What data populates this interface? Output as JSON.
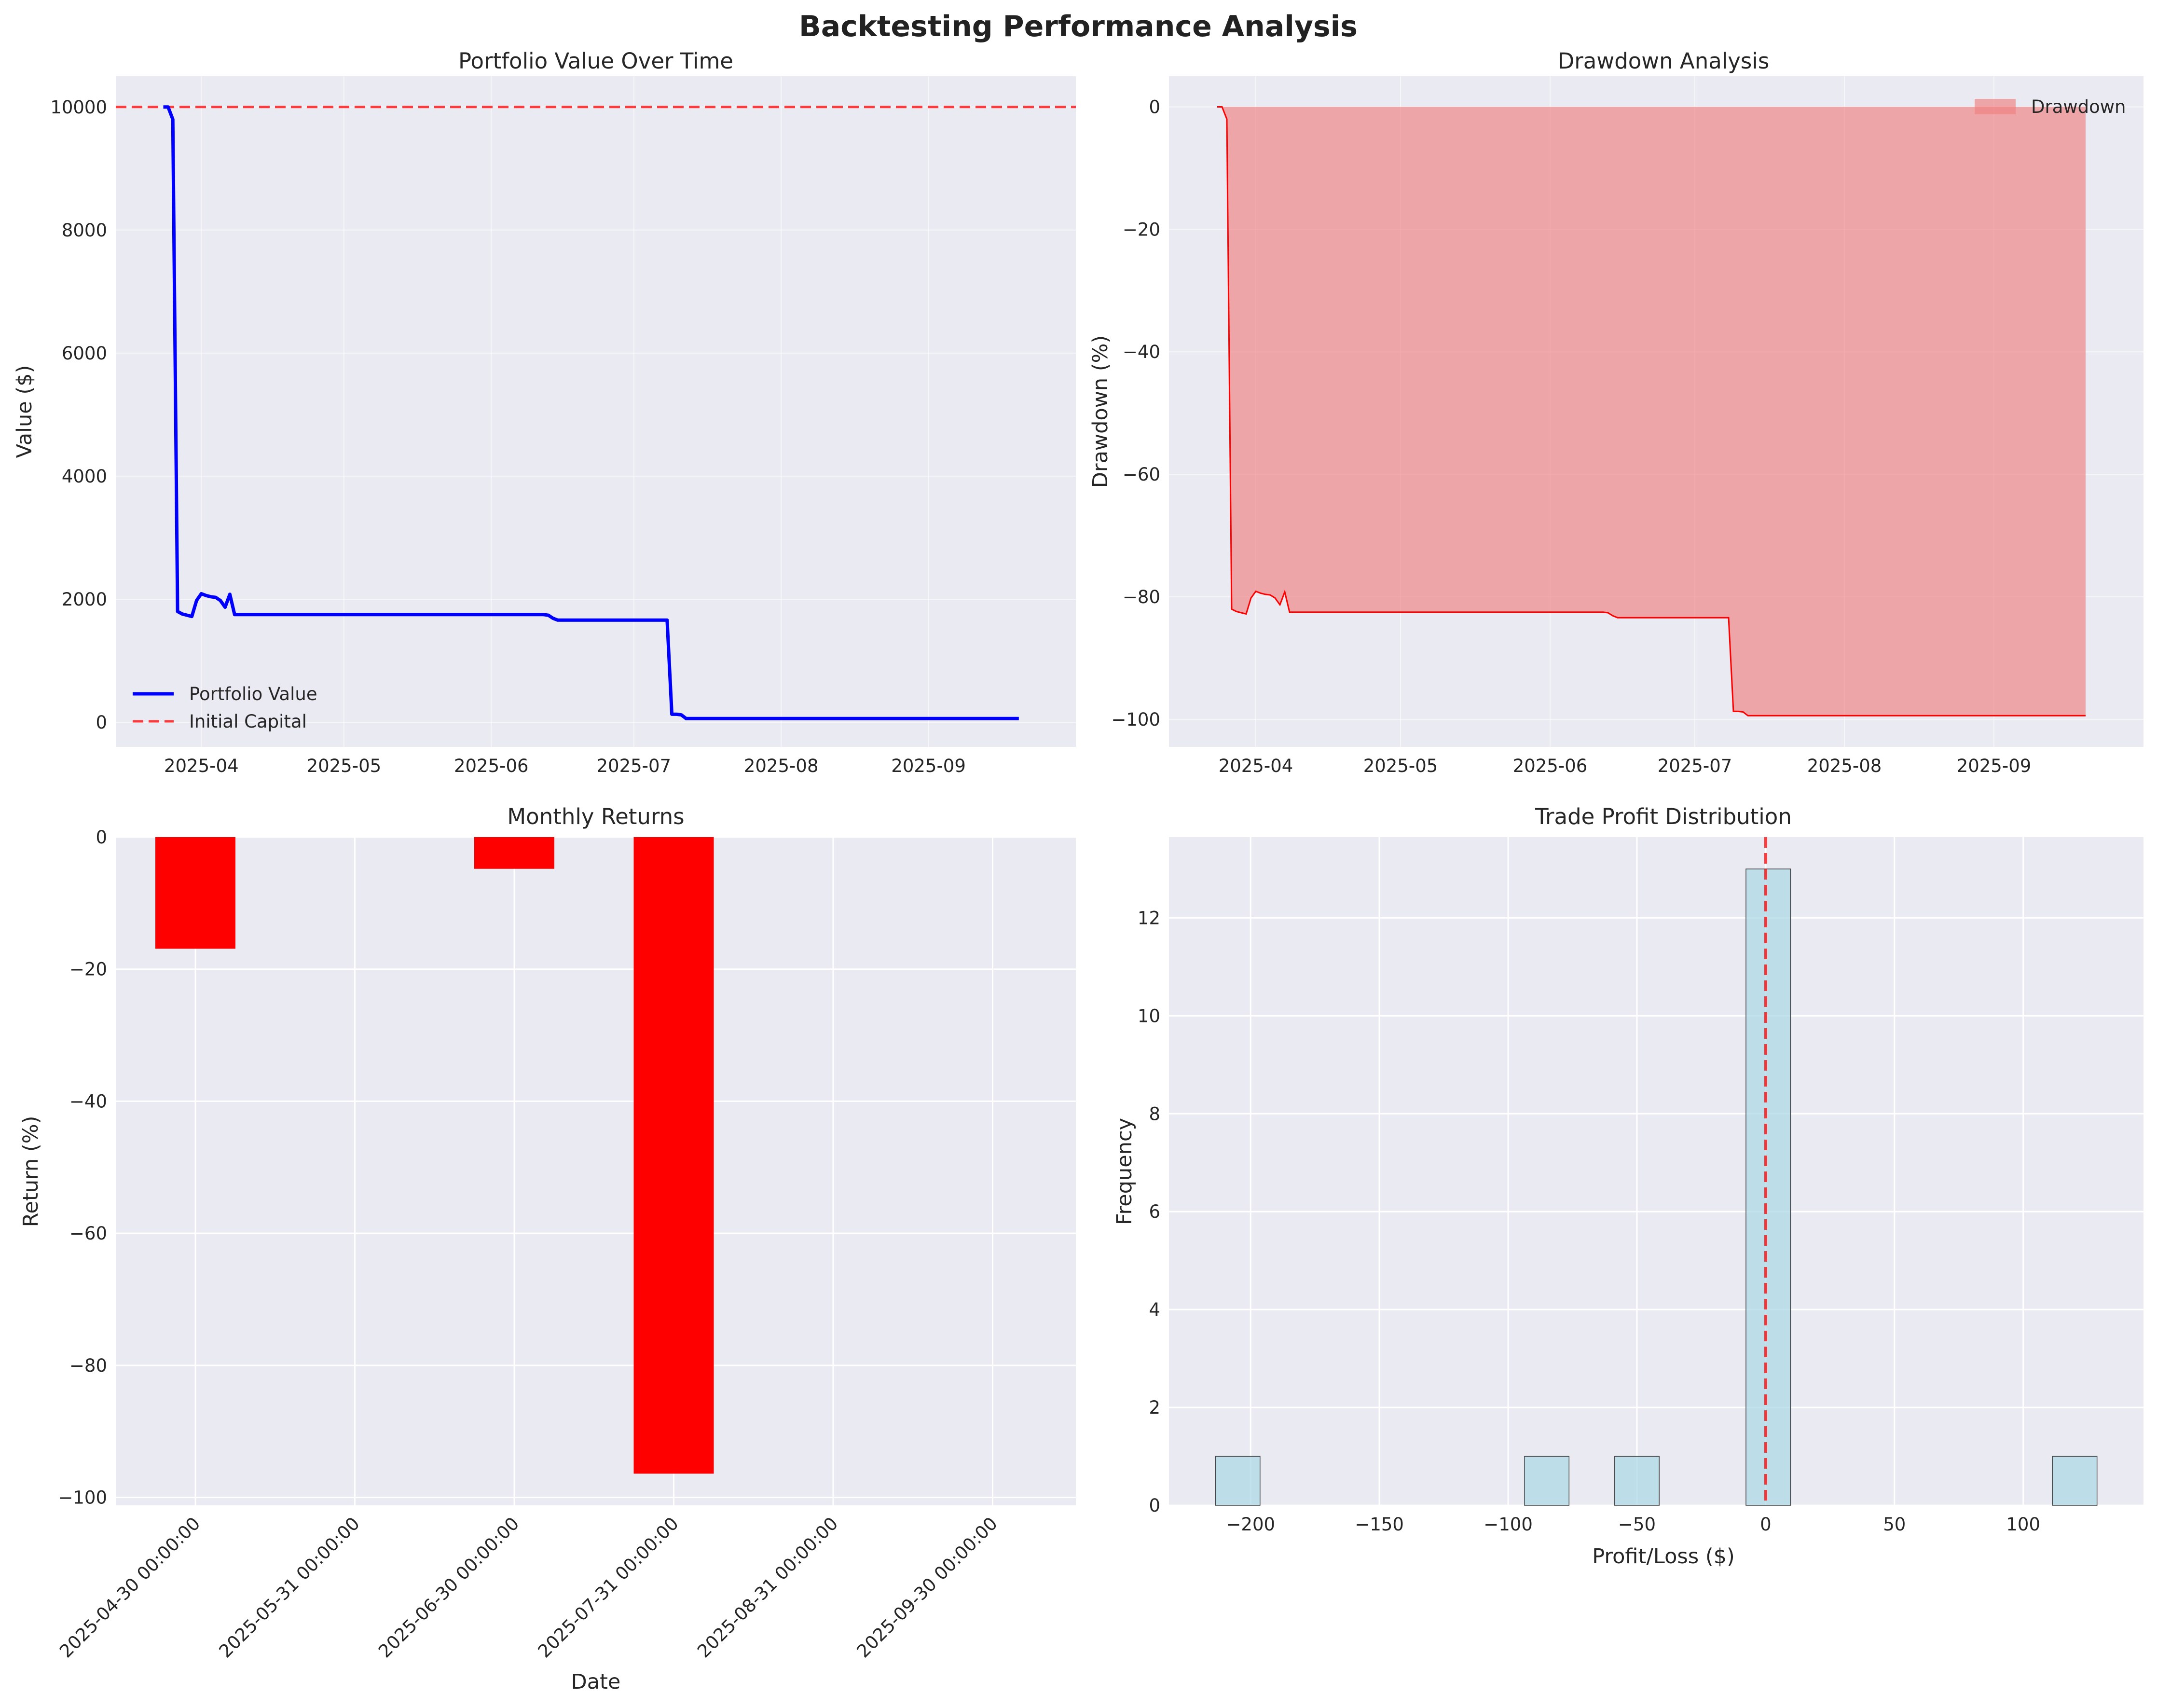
{
  "title": "Backtesting Performance Analysis",
  "chart_data": [
    {
      "id": "portfolio",
      "type": "line",
      "title": "Portfolio Value Over Time",
      "xlabel": "",
      "ylabel": "Value ($)",
      "x_ticks": [
        "2025-04",
        "2025-05",
        "2025-06",
        "2025-07",
        "2025-08",
        "2025-09"
      ],
      "y_ticks": [
        0,
        2000,
        4000,
        6000,
        8000,
        10000
      ],
      "xlim": [
        "2025-03-14",
        "2025-10-02"
      ],
      "ylim": [
        -400,
        10500
      ],
      "grid": true,
      "legend": "lower-left",
      "series": [
        {
          "name": "Portfolio Value",
          "color": "#0000ff",
          "style": "solid",
          "points": [
            [
              "2025-03-24",
              10000
            ],
            [
              "2025-03-25",
              10000
            ],
            [
              "2025-03-26",
              9800
            ],
            [
              "2025-03-27",
              1800
            ],
            [
              "2025-03-28",
              1760
            ],
            [
              "2025-03-29",
              1740
            ],
            [
              "2025-03-30",
              1720
            ],
            [
              "2025-03-31",
              1980
            ],
            [
              "2025-04-01",
              2090
            ],
            [
              "2025-04-02",
              2060
            ],
            [
              "2025-04-03",
              2040
            ],
            [
              "2025-04-04",
              2030
            ],
            [
              "2025-04-05",
              1980
            ],
            [
              "2025-04-06",
              1870
            ],
            [
              "2025-04-07",
              2080
            ],
            [
              "2025-04-08",
              1750
            ],
            [
              "2025-04-09",
              1750
            ],
            [
              "2025-06-12",
              1750
            ],
            [
              "2025-06-13",
              1740
            ],
            [
              "2025-06-14",
              1690
            ],
            [
              "2025-06-15",
              1660
            ],
            [
              "2025-07-07",
              1660
            ],
            [
              "2025-07-08",
              1660
            ],
            [
              "2025-07-09",
              130
            ],
            [
              "2025-07-10",
              130
            ],
            [
              "2025-07-11",
              120
            ],
            [
              "2025-07-12",
              60
            ],
            [
              "2025-07-13",
              60
            ],
            [
              "2025-09-20",
              60
            ]
          ]
        },
        {
          "name": "Initial Capital",
          "color": "#ff0000",
          "style": "dashed",
          "y_const": 10000
        }
      ]
    },
    {
      "id": "drawdown",
      "type": "area",
      "title": "Drawdown Analysis",
      "xlabel": "",
      "ylabel": "Drawdown (%)",
      "x_ticks": [
        "2025-04",
        "2025-05",
        "2025-06",
        "2025-07",
        "2025-08",
        "2025-09"
      ],
      "y_ticks": [
        -100,
        -80,
        -60,
        -40,
        -20,
        0
      ],
      "xlim": [
        "2025-03-14",
        "2025-10-02"
      ],
      "ylim": [
        -104.5,
        5
      ],
      "grid": true,
      "legend": "top-right",
      "series": [
        {
          "name": "Drawdown",
          "color": "#ff0000",
          "fill": "#f08080",
          "points": [
            [
              "2025-03-24",
              0
            ],
            [
              "2025-03-25",
              0
            ],
            [
              "2025-03-26",
              -2
            ],
            [
              "2025-03-27",
              -82
            ],
            [
              "2025-03-28",
              -82.4
            ],
            [
              "2025-03-29",
              -82.6
            ],
            [
              "2025-03-30",
              -82.8
            ],
            [
              "2025-03-31",
              -80.2
            ],
            [
              "2025-04-01",
              -79.1
            ],
            [
              "2025-04-02",
              -79.4
            ],
            [
              "2025-04-03",
              -79.6
            ],
            [
              "2025-04-04",
              -79.7
            ],
            [
              "2025-04-05",
              -80.2
            ],
            [
              "2025-04-06",
              -81.3
            ],
            [
              "2025-04-07",
              -79.2
            ],
            [
              "2025-04-08",
              -82.5
            ],
            [
              "2025-04-09",
              -82.5
            ],
            [
              "2025-06-12",
              -82.5
            ],
            [
              "2025-06-13",
              -82.6
            ],
            [
              "2025-06-14",
              -83.1
            ],
            [
              "2025-06-15",
              -83.4
            ],
            [
              "2025-07-07",
              -83.4
            ],
            [
              "2025-07-08",
              -83.4
            ],
            [
              "2025-07-09",
              -98.7
            ],
            [
              "2025-07-10",
              -98.7
            ],
            [
              "2025-07-11",
              -98.8
            ],
            [
              "2025-07-12",
              -99.4
            ],
            [
              "2025-07-13",
              -99.4
            ],
            [
              "2025-09-20",
              -99.4
            ]
          ]
        }
      ]
    },
    {
      "id": "monthly",
      "type": "bar",
      "title": "Monthly Returns",
      "xlabel": "Date",
      "ylabel": "Return (%)",
      "categories": [
        "2025-04-30 00:00:00",
        "2025-05-31 00:00:00",
        "2025-06-30 00:00:00",
        "2025-07-31 00:00:00",
        "2025-08-31 00:00:00",
        "2025-09-30 00:00:00"
      ],
      "values": [
        -16.9,
        0,
        -4.8,
        -96.4,
        0,
        0
      ],
      "y_ticks": [
        -100,
        -80,
        -60,
        -40,
        -20,
        0
      ],
      "ylim": [
        -101.2,
        0
      ],
      "grid": true,
      "color": "#ff0000"
    },
    {
      "id": "profit",
      "type": "bar",
      "title": "Trade Profit Distribution",
      "xlabel": "Profit/Loss ($)",
      "ylabel": "Frequency",
      "bin_width": 17.3,
      "bins": [
        {
          "center": -205,
          "count": 1
        },
        {
          "center": -85,
          "count": 1
        },
        {
          "center": -50,
          "count": 1
        },
        {
          "center": 1,
          "count": 13
        },
        {
          "center": 120,
          "count": 1
        }
      ],
      "x_ticks": [
        -200,
        -150,
        -100,
        -50,
        0,
        50,
        100
      ],
      "y_ticks": [
        0,
        2,
        4,
        6,
        8,
        10,
        12
      ],
      "xlim": [
        -231.7,
        146.7
      ],
      "ylim": [
        0,
        13.65
      ],
      "grid": true,
      "color": "#add8e6",
      "zero_line_color": "#ff0000"
    }
  ]
}
